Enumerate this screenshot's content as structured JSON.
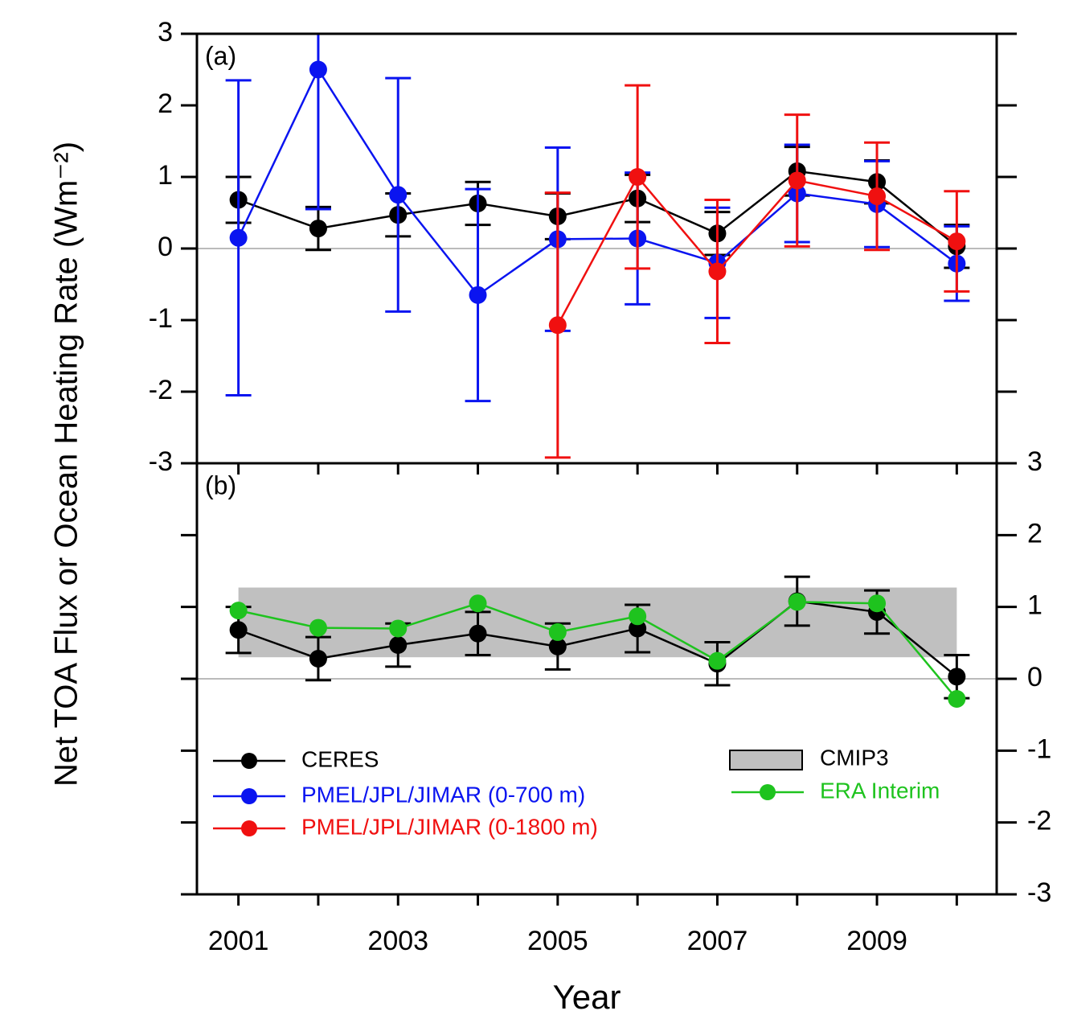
{
  "chart_data": [
    {
      "type": "line",
      "annotation": "(a)",
      "x": [
        2001,
        2002,
        2003,
        2004,
        2005,
        2006,
        2007,
        2008,
        2009,
        2010
      ],
      "xlim": [
        2000.48,
        2010.5
      ],
      "ylim": [
        -3,
        3
      ],
      "yticks": [
        -3,
        -2,
        -1,
        0,
        1,
        2,
        3
      ],
      "ytick_side": "left",
      "zero_line": true,
      "series": [
        {
          "name": "CERES",
          "color": "#000000",
          "values": [
            0.68,
            0.28,
            0.47,
            0.63,
            0.45,
            0.7,
            0.21,
            1.08,
            0.93,
            0.03
          ],
          "errors": [
            0.32,
            0.3,
            0.3,
            0.3,
            0.32,
            0.33,
            0.3,
            0.34,
            0.3,
            0.3
          ]
        },
        {
          "name": "PMEL/JPL/JIMAR (0-700 m)",
          "color": "#0a14f0",
          "values": [
            0.15,
            2.5,
            0.75,
            -0.65,
            0.13,
            0.14,
            -0.2,
            0.77,
            0.62,
            -0.21
          ],
          "errors": [
            2.2,
            1.95,
            1.63,
            1.48,
            1.28,
            0.92,
            0.77,
            0.68,
            0.6,
            0.52
          ]
        },
        {
          "name": "PMEL/JPL/JIMAR (0-1800 m)",
          "color": "#f01010",
          "values": [
            null,
            null,
            null,
            null,
            -1.07,
            1.0,
            -0.32,
            0.95,
            0.73,
            0.1
          ],
          "errors": [
            null,
            null,
            null,
            null,
            1.85,
            1.28,
            1.0,
            0.92,
            0.75,
            0.7
          ]
        }
      ]
    },
    {
      "type": "line",
      "annotation": "(b)",
      "xlabel": "Year",
      "ylabel": "Net TOA Flux or Ocean Heating Rate (Wm⁻²)",
      "x": [
        2001,
        2002,
        2003,
        2004,
        2005,
        2006,
        2007,
        2008,
        2009,
        2010
      ],
      "xlim": [
        2000.48,
        2010.5
      ],
      "xticks": [
        2001,
        2003,
        2005,
        2007,
        2009
      ],
      "ylim": [
        -3,
        3
      ],
      "yticks": [
        -3,
        -2,
        -1,
        0,
        1,
        2,
        3
      ],
      "ytick_side": "right",
      "zero_line": true,
      "band": {
        "name": "CMIP3",
        "color": "#c0c0c0",
        "lower": 0.3,
        "upper": 1.27
      },
      "series": [
        {
          "color": "#000000",
          "values": [
            0.68,
            0.28,
            0.47,
            0.63,
            0.45,
            0.7,
            0.21,
            1.08,
            0.93,
            0.03
          ],
          "errors": [
            0.32,
            0.3,
            0.3,
            0.3,
            0.32,
            0.33,
            0.3,
            0.34,
            0.3,
            0.3
          ]
        },
        {
          "name": "ERA Interim",
          "color": "#1ec31e",
          "values": [
            0.95,
            0.71,
            0.7,
            1.05,
            0.65,
            0.87,
            0.25,
            1.07,
            1.05,
            -0.28
          ]
        }
      ]
    }
  ]
}
